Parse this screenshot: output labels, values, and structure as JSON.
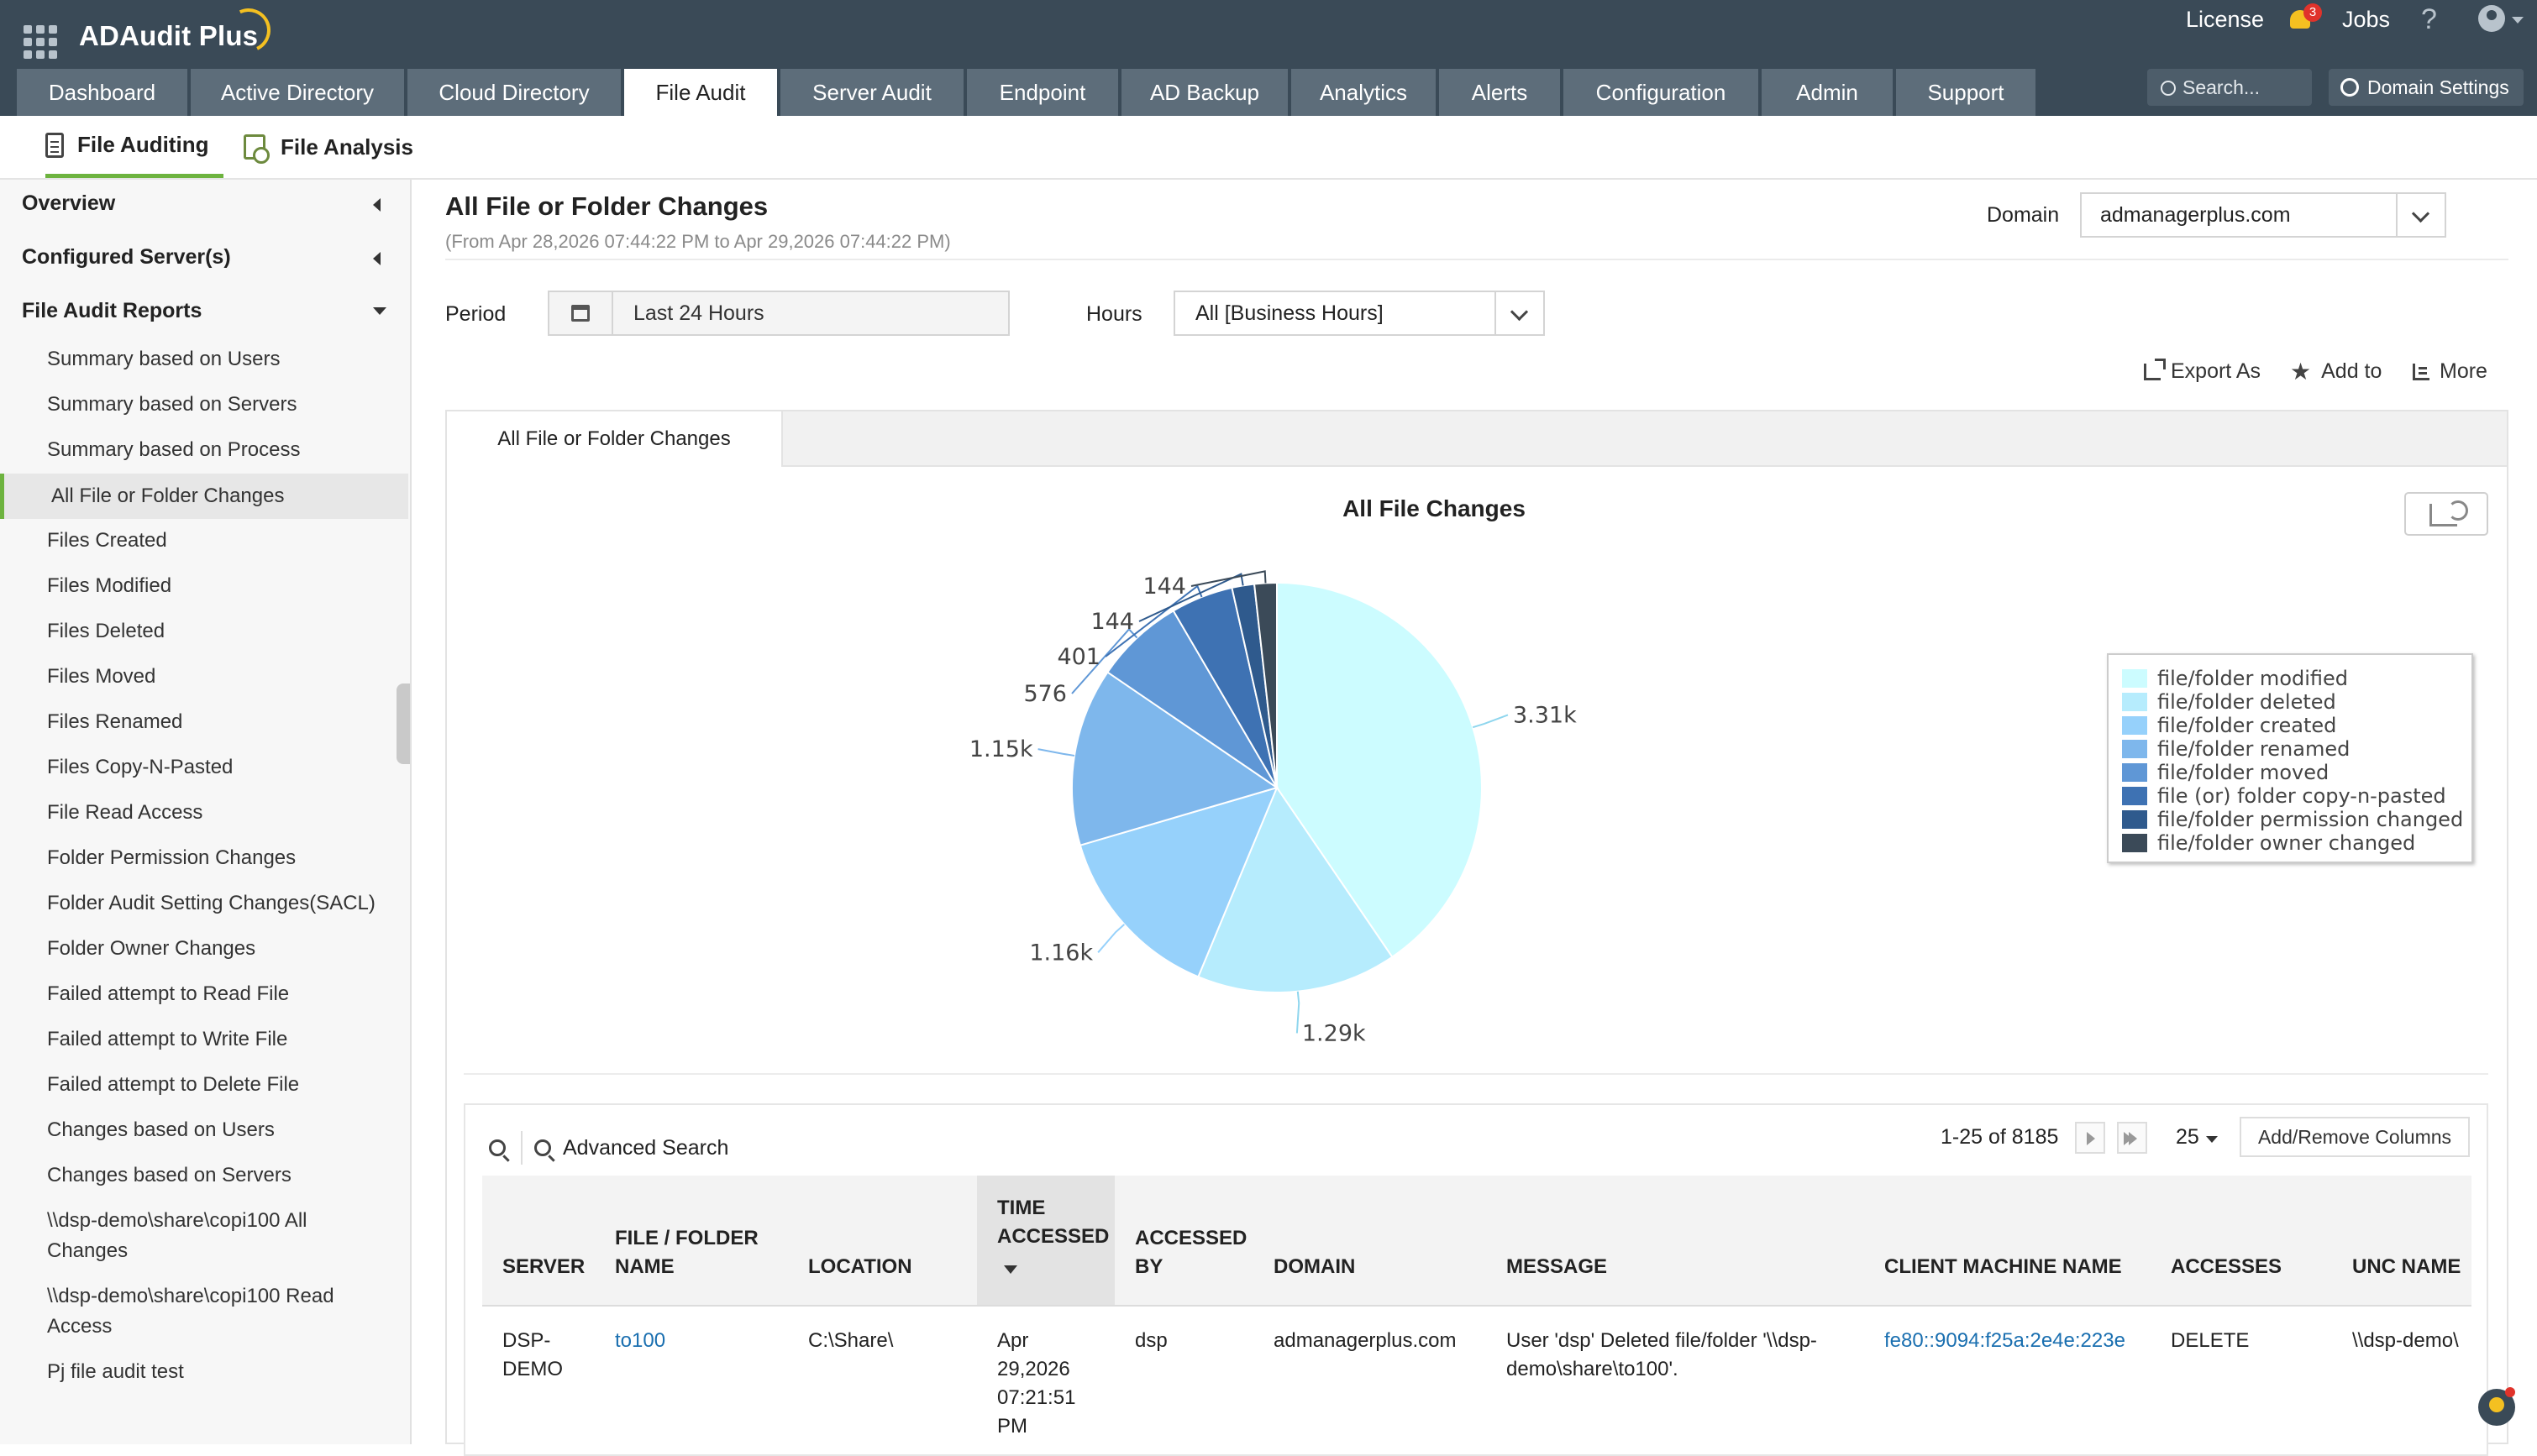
{
  "app": {
    "title": "ADAudit Plus"
  },
  "topbar": {
    "license_label": "License",
    "notification_count": "3",
    "jobs_label": "Jobs",
    "help_label": "?",
    "search_placeholder": "Search...",
    "domain_settings_label": "Domain Settings"
  },
  "main_tabs": [
    "Dashboard",
    "Active Directory",
    "Cloud Directory",
    "File Audit",
    "Server Audit",
    "Endpoint",
    "AD Backup",
    "Analytics",
    "Alerts",
    "Configuration",
    "Admin",
    "Support"
  ],
  "active_main_tab": "File Audit",
  "sub_tabs": [
    "File Auditing",
    "File Analysis"
  ],
  "sidebar": {
    "sections": [
      "Overview",
      "Configured Server(s)",
      "File Audit Reports"
    ],
    "items": [
      "Summary based on Users",
      "Summary based on Servers",
      "Summary based on Process",
      "All File or Folder Changes",
      "Files Created",
      "Files Modified",
      "Files Deleted",
      "Files Moved",
      "Files Renamed",
      "Files Copy-N-Pasted",
      "File Read Access",
      "Folder Permission Changes",
      "Folder Audit Setting Changes(SACL)",
      "Folder Owner Changes",
      "Failed attempt to Read File",
      "Failed attempt to Write File",
      "Failed attempt to Delete File",
      "Changes based on Users",
      "Changes based on Servers",
      "\\\\dsp-demo\\share\\copi100 All Changes",
      "\\\\dsp-demo\\share\\copi100 Read Access",
      "Pj file audit test"
    ],
    "active_item": "All File or Folder Changes"
  },
  "report": {
    "title": "All File or Folder Changes",
    "range": "(From Apr 28,2026 07:44:22 PM to Apr 29,2026 07:44:22 PM)",
    "domain_label": "Domain",
    "domain_value": "admanagerplus.com",
    "period_label": "Period",
    "period_value": "Last 24 Hours",
    "hours_label": "Hours",
    "hours_value": "All [Business Hours]",
    "export_label": "Export As",
    "add_to_label": "Add to",
    "more_label": "More",
    "tab_label": "All File or Folder Changes"
  },
  "chart_data": {
    "type": "pie",
    "title": "All File Changes",
    "legend_position": "right",
    "slices": [
      {
        "name": "file/folder modified",
        "value": 3310,
        "label": "3.31k",
        "color": "#ccfcff"
      },
      {
        "name": "file/folder deleted",
        "value": 1290,
        "label": "1.29k",
        "color": "#b6ecfd"
      },
      {
        "name": "file/folder created",
        "value": 1160,
        "label": "1.16k",
        "color": "#96d1fb"
      },
      {
        "name": "file/folder renamed",
        "value": 1150,
        "label": "1.15k",
        "color": "#7eb7ec"
      },
      {
        "name": "file/folder moved",
        "value": 576,
        "label": "576",
        "color": "#5f97d6"
      },
      {
        "name": "file (or) folder copy-n-pasted",
        "value": 401,
        "label": "401",
        "color": "#3e72b3"
      },
      {
        "name": "file/folder permission changed",
        "value": 144,
        "label": "144",
        "color": "#2f5a8d"
      },
      {
        "name": "file/folder owner changed",
        "value": 144,
        "label": "144",
        "color": "#3b4a58"
      }
    ]
  },
  "table": {
    "advanced_search_label": "Advanced Search",
    "pager_text": "1-25 of 8185",
    "per_page": "25",
    "add_remove_columns_label": "Add/Remove Columns",
    "columns": [
      "SERVER",
      "FILE / FOLDER NAME",
      "LOCATION",
      "TIME ACCESSED",
      "ACCESSED BY",
      "DOMAIN",
      "MESSAGE",
      "CLIENT MACHINE NAME",
      "ACCESSES",
      "UNC NAME"
    ],
    "rows": [
      {
        "server": "DSP-DEMO",
        "file_folder_name": "to100",
        "location": "C:\\Share\\",
        "time_accessed": "Apr 29,2026 07:21:51 PM",
        "accessed_by": "dsp",
        "domain": "admanagerplus.com",
        "message": "User 'dsp' Deleted file/folder '\\\\dsp-demo\\share\\to100'.",
        "client_machine_name": "fe80::9094:f25a:2e4e:223e",
        "accesses": "DELETE",
        "unc_name": "\\\\dsp-demo\\"
      }
    ]
  }
}
